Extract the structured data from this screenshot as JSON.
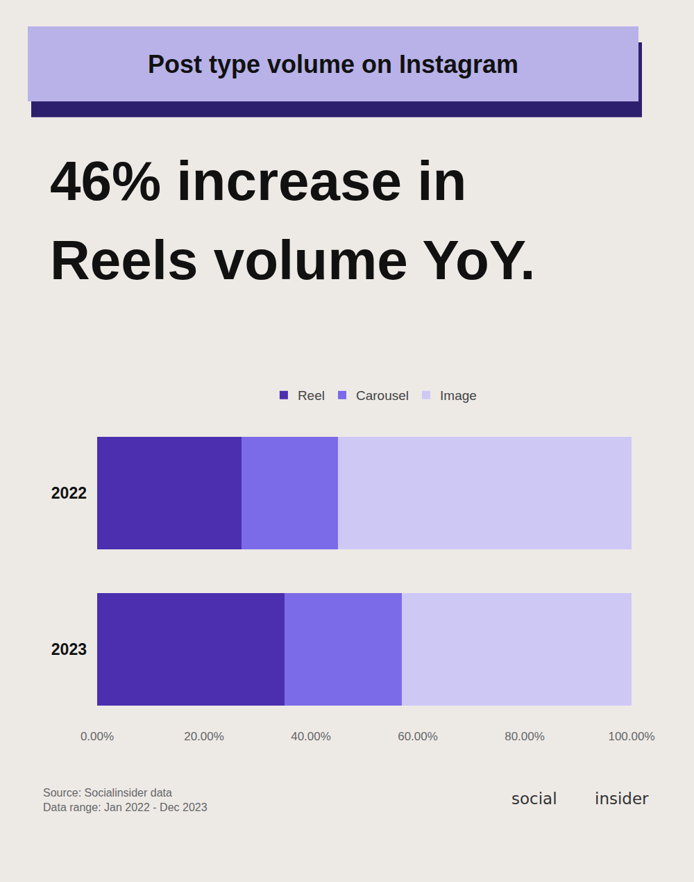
{
  "chart_data": {
    "type": "bar",
    "orientation": "horizontal",
    "stacked": true,
    "title": "Post type volume on Instagram",
    "annotations": [
      "46% increase in",
      "Reels volume YoY.",
      "Source: Socialinsider data\nData range: Jan 2022 - Dec 2023",
      "social",
      "insider"
    ],
    "categories": [
      "2022",
      "2023"
    ],
    "series": [
      {
        "name": "Reel",
        "color": "#4b2faf",
        "values": [
          27.0,
          35.0
        ]
      },
      {
        "name": "Carousel",
        "color": "#7b6be8",
        "values": [
          18.0,
          22.0
        ]
      },
      {
        "name": "Image",
        "color": "#cec8f5",
        "values": [
          55.0,
          43.0
        ]
      }
    ],
    "xlim": [
      0,
      100
    ],
    "xticks": [
      {
        "value": 0,
        "label": "0.00%"
      },
      {
        "value": 20,
        "label": "20.00%"
      },
      {
        "value": 40,
        "label": "40.00%"
      },
      {
        "value": 60,
        "label": "60.00%"
      },
      {
        "value": 80,
        "label": "80.00%"
      },
      {
        "value": 100,
        "label": "100.00%"
      }
    ],
    "grid": false,
    "legend": "top"
  }
}
